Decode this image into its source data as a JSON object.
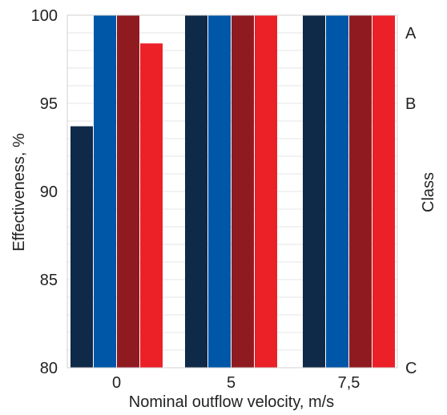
{
  "chart_data": {
    "type": "bar",
    "categories": [
      "0",
      "5",
      "7,5"
    ],
    "series": [
      {
        "color": "#0f2a48",
        "values": [
          93.7,
          100,
          100
        ]
      },
      {
        "color": "#0057a8",
        "values": [
          100,
          100,
          100
        ]
      },
      {
        "color": "#8f1b20",
        "values": [
          100,
          100,
          100
        ]
      },
      {
        "color": "#ec2027",
        "values": [
          98.4,
          100,
          100
        ]
      }
    ],
    "xlabel": "Nominal outflow velocity, m/s",
    "ylabel": "Effectiveness, %",
    "ylim": [
      80,
      100
    ],
    "yticks": [
      80,
      85,
      90,
      95,
      100
    ],
    "grid": true,
    "right_axis": {
      "label": "Class",
      "classes": [
        {
          "label": "A",
          "value": 99
        },
        {
          "label": "B",
          "value": 95
        },
        {
          "label": "C",
          "value": 80
        }
      ]
    }
  }
}
